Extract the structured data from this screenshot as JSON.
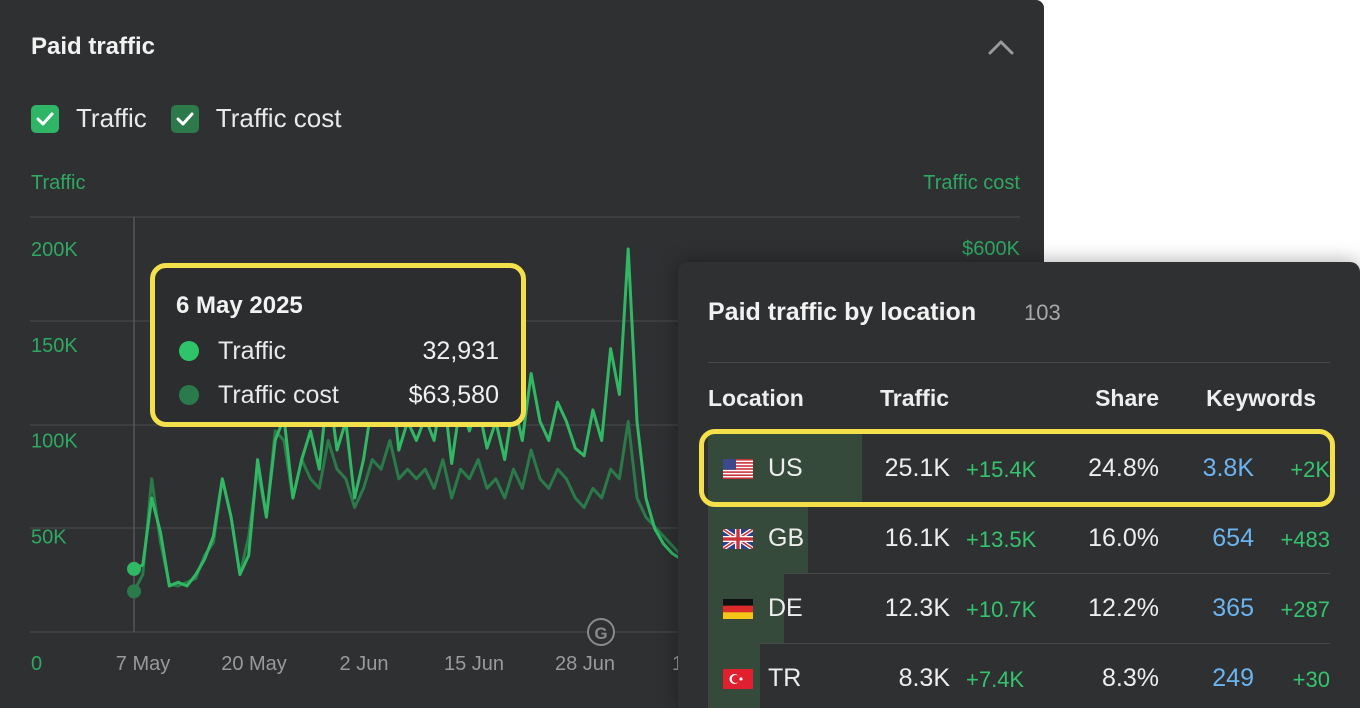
{
  "panel": {
    "title": "Paid traffic",
    "collapse_icon": "chevron-up-icon",
    "legend": [
      {
        "label": "Traffic",
        "color": "#2fb566",
        "checked": true
      },
      {
        "label": "Traffic cost",
        "color": "#2c7a4a",
        "checked": true
      }
    ]
  },
  "tooltip": {
    "date": "6 May 2025",
    "rows": [
      {
        "label": "Traffic",
        "value": "32,931",
        "color": "#2fc46a"
      },
      {
        "label": "Traffic cost",
        "value": "$63,580",
        "color": "#2b7a4b"
      }
    ]
  },
  "chart_data": {
    "type": "line",
    "y_left_label": "Traffic",
    "y_right_label": "Traffic cost",
    "y_left_ticks": [
      "0",
      "50K",
      "100K",
      "150K",
      "200K"
    ],
    "y_right_ticks": [
      "$600K"
    ],
    "ylim_left": [
      0,
      200000
    ],
    "ylim_right": [
      0,
      600000
    ],
    "x_tick_labels": [
      "7 May",
      "20 May",
      "2 Jun",
      "15 Jun",
      "28 Jun",
      "1"
    ],
    "annotation_icon": "google-update-icon",
    "grid": true,
    "series": [
      {
        "name": "Traffic",
        "color": "#31b865",
        "axis": "left",
        "values": [
          32931,
          35000,
          70000,
          52000,
          24000,
          26000,
          24000,
          30000,
          38000,
          50000,
          80000,
          60000,
          30000,
          40000,
          90000,
          60000,
          100000,
          112000,
          70000,
          90000,
          105000,
          85000,
          130000,
          95000,
          110000,
          70000,
          90000,
          120000,
          115000,
          140000,
          95000,
          110000,
          100000,
          112000,
          100000,
          128000,
          88000,
          120000,
          105000,
          118000,
          96000,
          110000,
          90000,
          120000,
          100000,
          135000,
          110000,
          100000,
          120000,
          110000,
          96000,
          92000,
          116000,
          100000,
          148000,
          124000,
          200000,
          110000,
          70000,
          54000,
          46000,
          41000,
          38000,
          35000
        ]
      },
      {
        "name": "Traffic cost",
        "color": "#2a7a4a",
        "axis": "right",
        "values": [
          63580,
          90000,
          240000,
          140000,
          75000,
          72000,
          78000,
          84000,
          120000,
          140000,
          240000,
          180000,
          90000,
          150000,
          255000,
          180000,
          315000,
          300000,
          210000,
          270000,
          240000,
          225000,
          300000,
          255000,
          240000,
          195000,
          225000,
          270000,
          255000,
          300000,
          240000,
          255000,
          240000,
          255000,
          225000,
          270000,
          210000,
          255000,
          240000,
          270000,
          225000,
          240000,
          210000,
          255000,
          225000,
          285000,
          240000,
          225000,
          255000,
          240000,
          210000,
          195000,
          225000,
          210000,
          255000,
          240000,
          330000,
          210000,
          180000,
          165000,
          150000,
          135000,
          120000,
          105000
        ]
      }
    ]
  },
  "locations": {
    "title": "Paid traffic by location",
    "count": "103",
    "headers": {
      "location": "Location",
      "traffic": "Traffic",
      "share": "Share",
      "keywords": "Keywords"
    },
    "rows": [
      {
        "flag": "us-flag-icon",
        "code": "US",
        "traffic": "25.1K",
        "traffic_delta": "+15.4K",
        "share": "24.8%",
        "share_fraction": 0.248,
        "keywords": "3.8K",
        "keywords_delta": "+2K"
      },
      {
        "flag": "gb-flag-icon",
        "code": "GB",
        "traffic": "16.1K",
        "traffic_delta": "+13.5K",
        "share": "16.0%",
        "share_fraction": 0.16,
        "keywords": "654",
        "keywords_delta": "+483"
      },
      {
        "flag": "de-flag-icon",
        "code": "DE",
        "traffic": "12.3K",
        "traffic_delta": "+10.7K",
        "share": "12.2%",
        "share_fraction": 0.122,
        "keywords": "365",
        "keywords_delta": "+287"
      },
      {
        "flag": "tr-flag-icon",
        "code": "TR",
        "traffic": "8.3K",
        "traffic_delta": "+7.4K",
        "share": "8.3%",
        "share_fraction": 0.083,
        "keywords": "249",
        "keywords_delta": "+30"
      }
    ]
  }
}
